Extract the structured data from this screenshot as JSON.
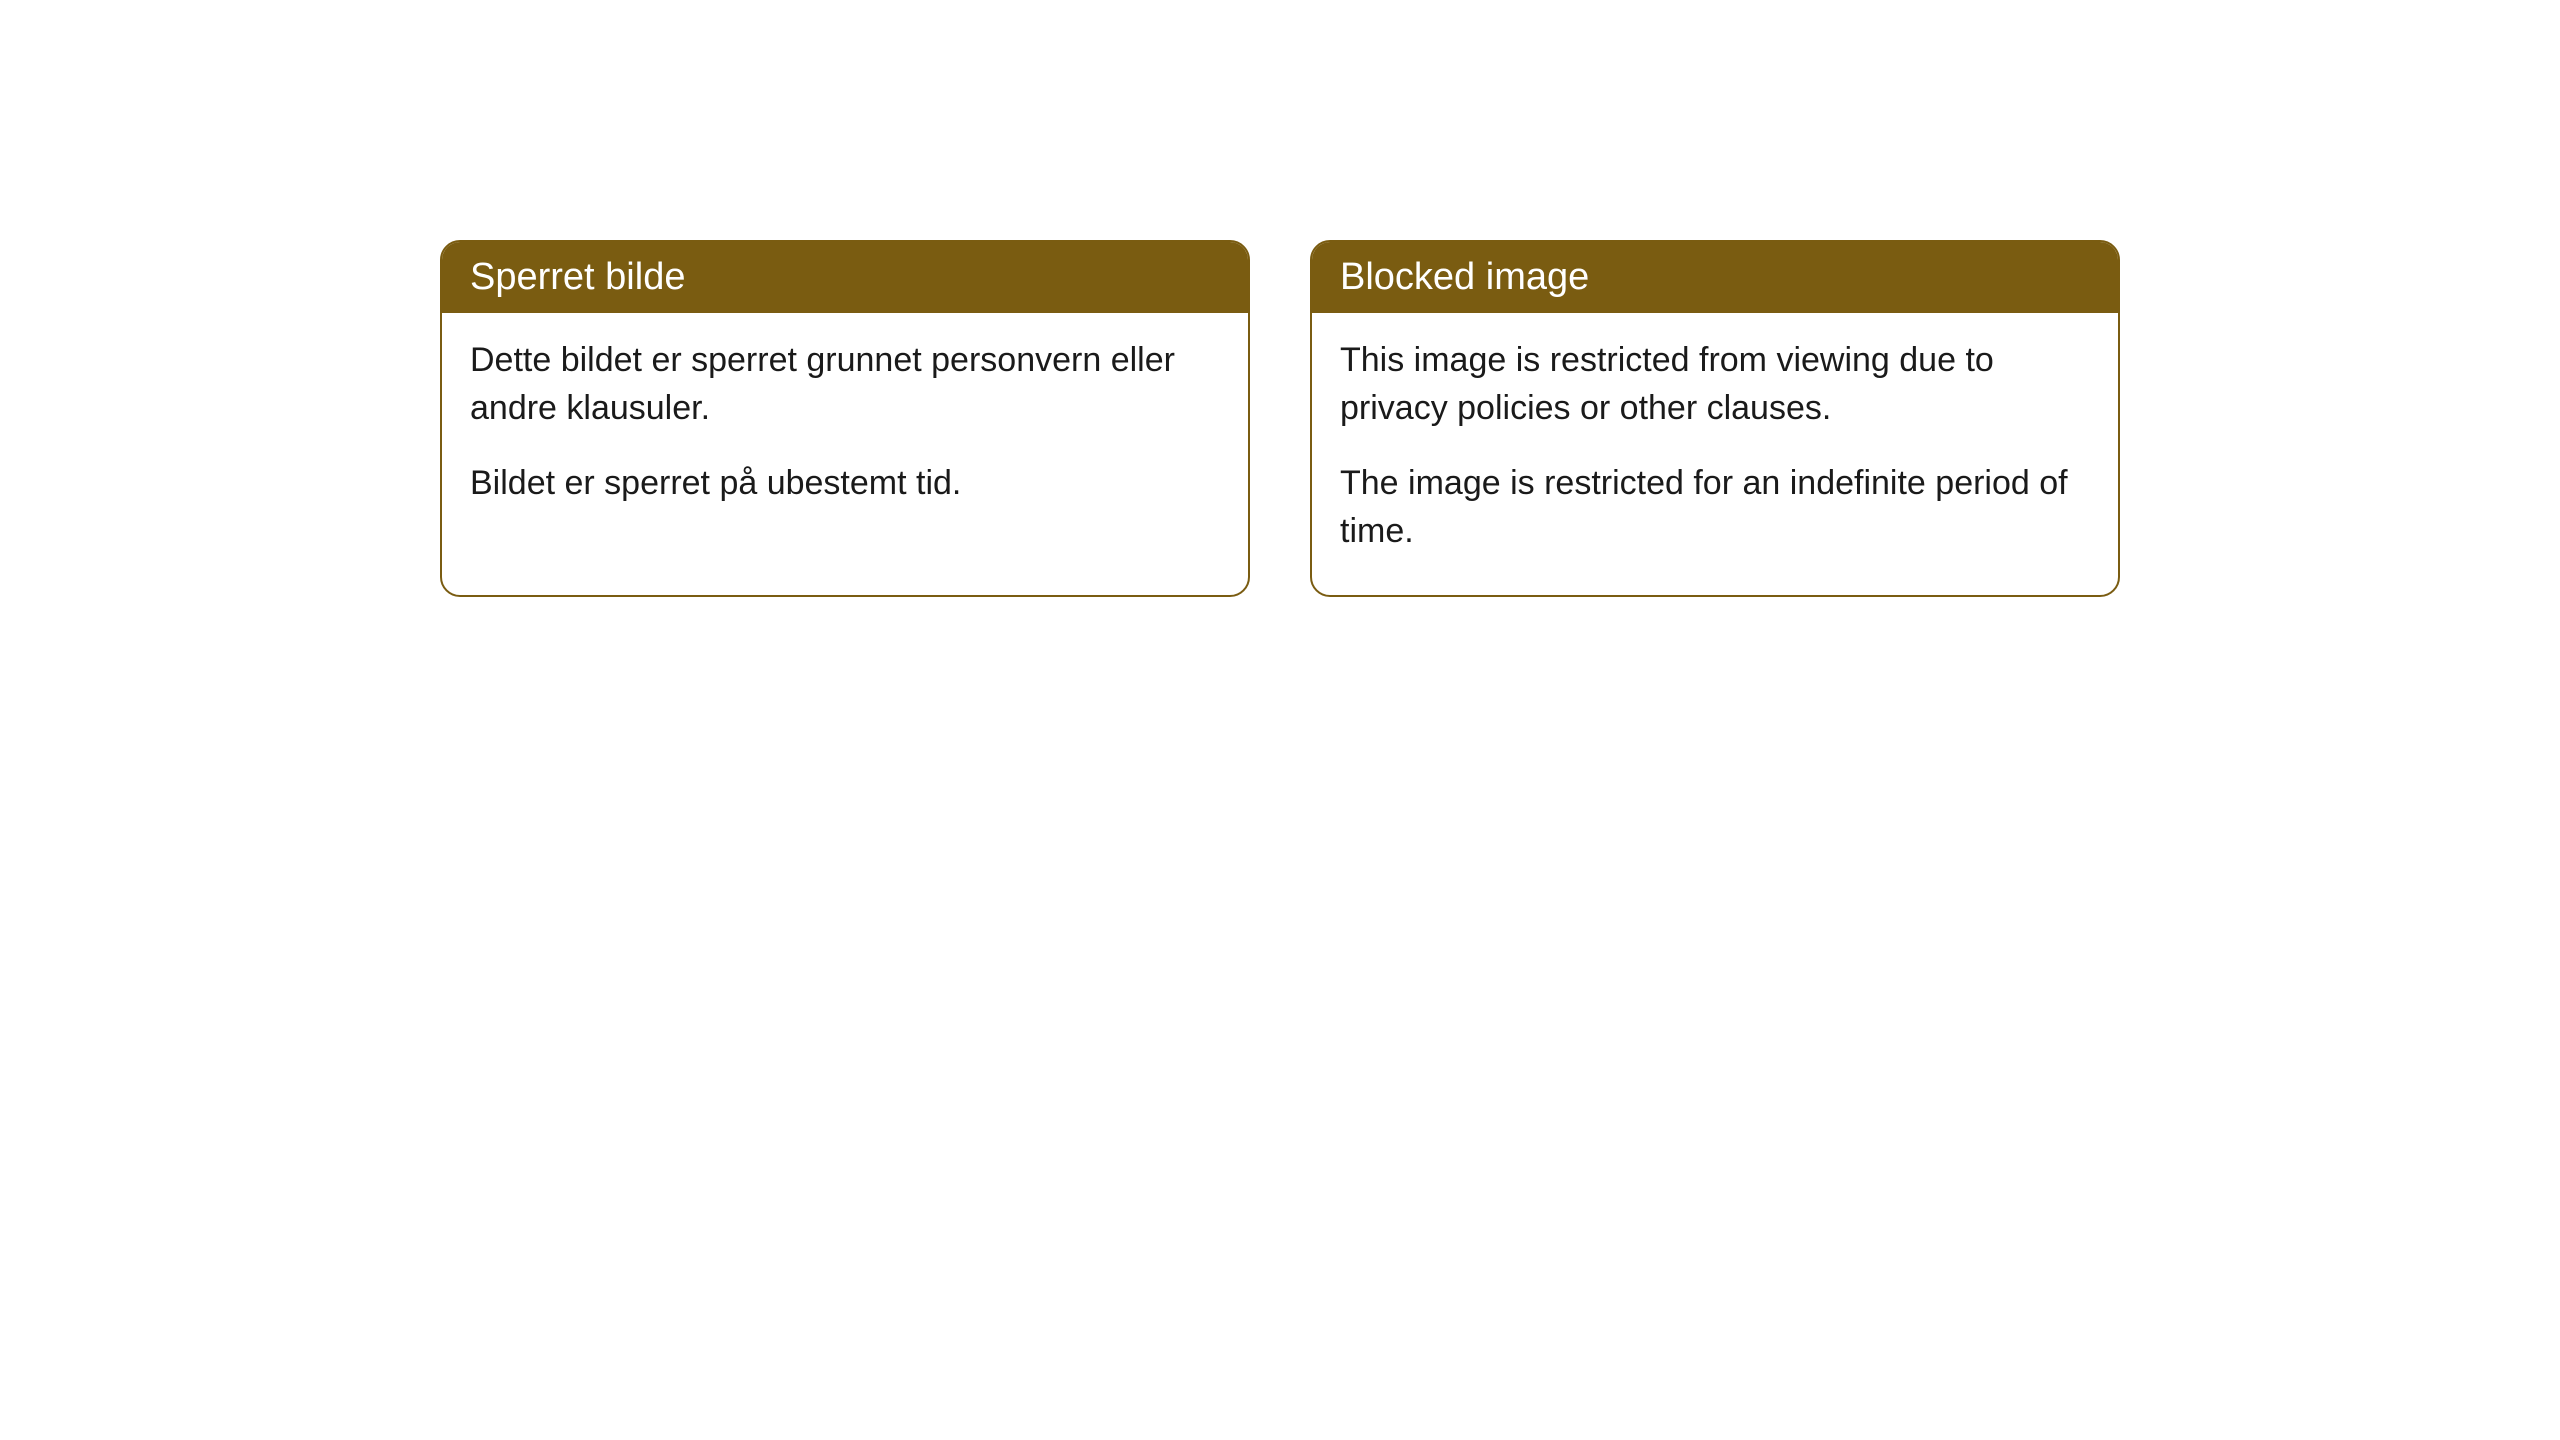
{
  "cards": [
    {
      "title": "Sperret bilde",
      "paragraph1": "Dette bildet er sperret grunnet personvern eller andre klausuler.",
      "paragraph2": "Bildet er sperret på ubestemt tid."
    },
    {
      "title": "Blocked image",
      "paragraph1": "This image is restricted from viewing due to privacy policies or other clauses.",
      "paragraph2": "The image is restricted for an indefinite period of time."
    }
  ],
  "styling": {
    "header_background": "#7a5c11",
    "header_text_color": "#ffffff",
    "border_color": "#7a5c11",
    "body_background": "#ffffff",
    "body_text_color": "#1a1a1a",
    "border_radius": 20,
    "title_fontsize": 38,
    "body_fontsize": 34
  }
}
